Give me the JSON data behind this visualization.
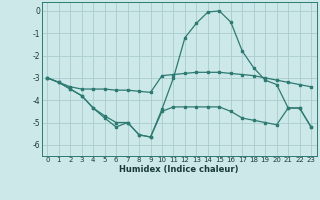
{
  "xlabel": "Humidex (Indice chaleur)",
  "xlim": [
    -0.5,
    23.5
  ],
  "ylim": [
    -6.5,
    0.4
  ],
  "xticks": [
    0,
    1,
    2,
    3,
    4,
    5,
    6,
    7,
    8,
    9,
    10,
    11,
    12,
    13,
    14,
    15,
    16,
    17,
    18,
    19,
    20,
    21,
    22,
    23
  ],
  "yticks": [
    0,
    -1,
    -2,
    -3,
    -4,
    -5,
    -6
  ],
  "bg": "#cce8e8",
  "grid_color": "#aacccc",
  "lc": "#2d7a72",
  "lw": 0.9,
  "ms": 2.0,
  "line1_x": [
    0,
    1,
    2,
    3,
    4,
    5,
    6,
    7,
    8,
    9,
    10,
    11,
    12,
    13,
    14,
    15,
    16,
    17,
    18,
    19,
    20,
    21,
    22,
    23
  ],
  "line1_y": [
    -3.0,
    -3.2,
    -3.4,
    -3.5,
    -3.5,
    -3.5,
    -3.55,
    -3.55,
    -3.6,
    -3.65,
    -2.9,
    -2.85,
    -2.8,
    -2.75,
    -2.75,
    -2.75,
    -2.8,
    -2.85,
    -2.9,
    -3.0,
    -3.1,
    -3.2,
    -3.3,
    -3.4
  ],
  "line2_x": [
    0,
    1,
    2,
    3,
    4,
    5,
    6,
    7,
    8,
    9,
    10,
    11,
    12,
    13,
    14,
    15,
    16,
    17,
    18,
    19,
    20,
    21,
    22,
    23
  ],
  "line2_y": [
    -3.0,
    -3.2,
    -3.5,
    -3.8,
    -4.35,
    -4.8,
    -5.2,
    -5.0,
    -5.55,
    -5.65,
    -4.4,
    -3.0,
    -1.2,
    -0.55,
    -0.05,
    0.0,
    -0.5,
    -1.8,
    -2.55,
    -3.1,
    -3.3,
    -4.35,
    -4.35,
    -5.2
  ],
  "line3_x": [
    0,
    1,
    2,
    3,
    4,
    5,
    6,
    7,
    8,
    9,
    10,
    11,
    12,
    13,
    14,
    15,
    16,
    17,
    18,
    19,
    20,
    21,
    22,
    23
  ],
  "line3_y": [
    -3.0,
    -3.2,
    -3.5,
    -3.8,
    -4.35,
    -4.7,
    -5.0,
    -5.0,
    -5.55,
    -5.65,
    -4.5,
    -4.3,
    -4.3,
    -4.3,
    -4.3,
    -4.3,
    -4.5,
    -4.8,
    -4.9,
    -5.0,
    -5.1,
    -4.35,
    -4.35,
    -5.2
  ]
}
